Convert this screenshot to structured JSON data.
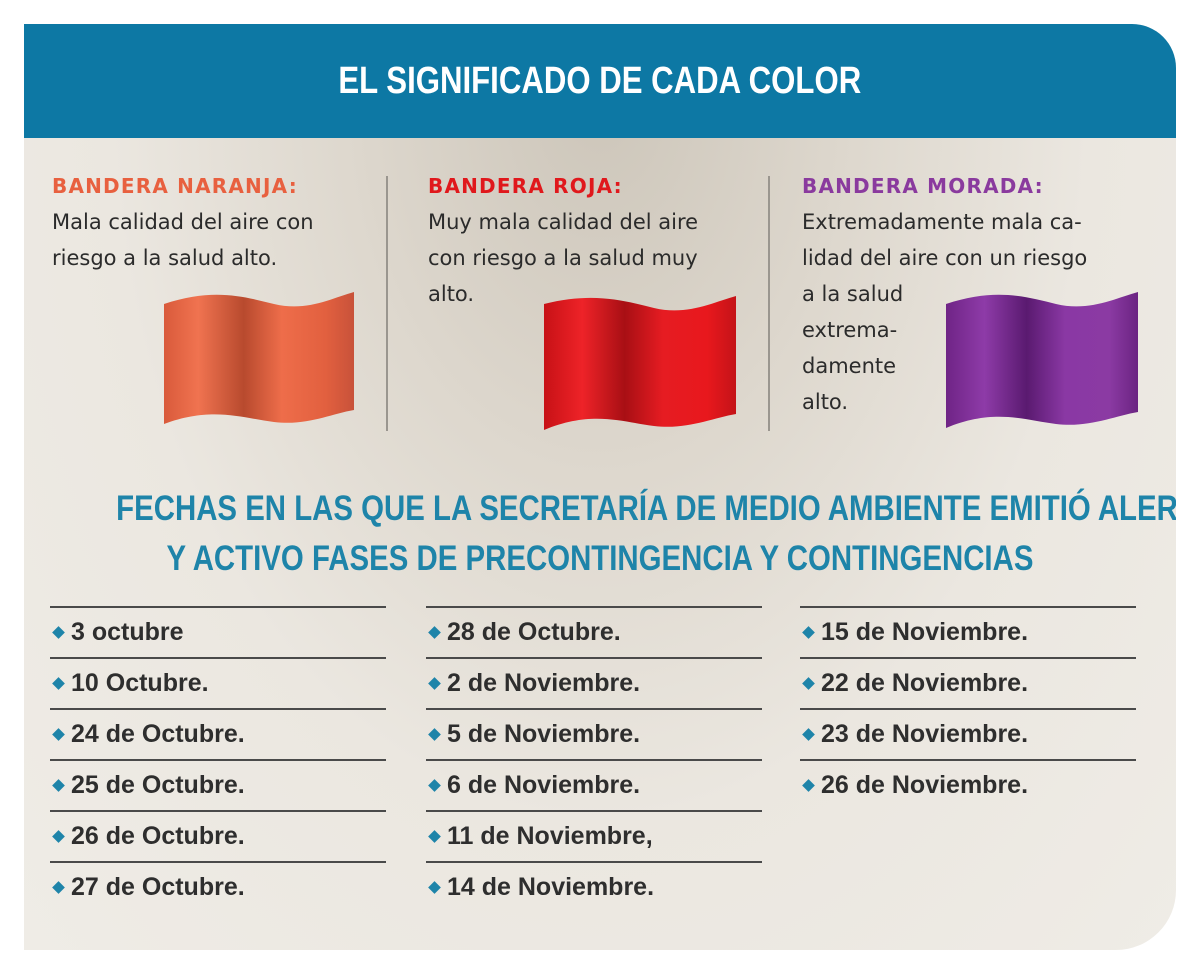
{
  "title": "EL SIGNIFICADO DE CADA COLOR",
  "flags": [
    {
      "label": "BANDERA NARANJA:",
      "description": "Mala calidad del aire con\nriesgo a la salud alto.",
      "color": "#e8603f",
      "label_color": "#e8603f"
    },
    {
      "label": "BANDERA ROJA:",
      "description": "Muy mala calidad del aire\ncon riesgo a la salud muy\nalto.",
      "color": "#e0181c",
      "label_color": "#e0181c"
    },
    {
      "label": "BANDERA MORADA:",
      "description": "Extremadamente mala ca-\nlidad del aire con un riesgo\na la salud\nextrema-\ndamente\nalto.",
      "color": "#7e2f96",
      "label_color": "#8a3a9e"
    }
  ],
  "dates_heading": {
    "line1": "FECHAS EN LAS QUE LA SECRETARÍA DE MEDIO AMBIENTE EMITIÓ ALERTAS",
    "line2": "Y ACTIVO FASES DE PRECONTINGENCIA Y CONTINGENCIAS"
  },
  "date_columns": [
    [
      "3 octubre",
      "10 Octubre.",
      "24 de Octubre.",
      "25 de Octubre.",
      "26 de Octubre.",
      "27 de Octubre."
    ],
    [
      "28 de Octubre.",
      "2 de Noviembre.",
      "5 de Noviembre.",
      "6 de Noviembre.",
      "11 de Noviembre,",
      "14 de Noviembre."
    ],
    [
      "15 de Noviembre.",
      "22 de Noviembre.",
      "23 de Noviembre.",
      "26 de Noviembre."
    ]
  ],
  "colors": {
    "header_bg": "#0d78a4",
    "heading_blue": "#1e84a9",
    "bullet_blue": "#1e84a9"
  }
}
